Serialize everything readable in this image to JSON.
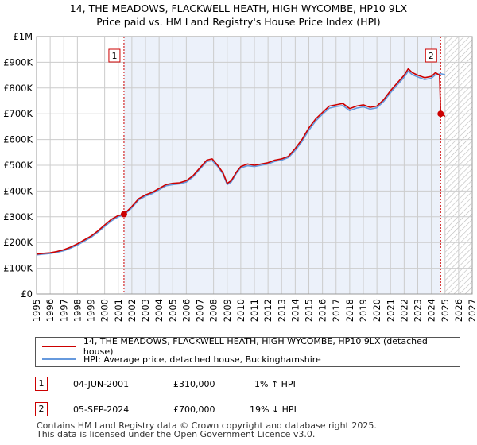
{
  "title_line1": "14, THE MEADOWS, FLACKWELL HEATH, HIGH WYCOMBE, HP10 9LX",
  "title_line2": "Price paid vs. HM Land Registry's House Price Index (HPI)",
  "colors": {
    "property": "#cc0000",
    "hpi": "#6699dd",
    "marker": "#cc0000",
    "shade": "#dde6f5",
    "hatch": "#bbbbbb"
  },
  "chart_data": {
    "type": "line",
    "title": "14, THE MEADOWS, FLACKWELL HEATH, HIGH WYCOMBE, HP10 9LX — Price paid vs. HM Land Registry's House Price Index (HPI)",
    "xlabel": "",
    "ylabel": "",
    "xlim": [
      1995,
      2027
    ],
    "ylim": [
      0,
      1000000
    ],
    "y_ticks": [
      0,
      100000,
      200000,
      300000,
      400000,
      500000,
      600000,
      700000,
      800000,
      900000,
      1000000
    ],
    "y_tick_labels": [
      "£0",
      "£100K",
      "£200K",
      "£300K",
      "£400K",
      "£500K",
      "£600K",
      "£700K",
      "£800K",
      "£900K",
      "£1M"
    ],
    "x_ticks": [
      1995,
      1996,
      1997,
      1998,
      1999,
      2000,
      2001,
      2002,
      2003,
      2004,
      2005,
      2006,
      2007,
      2008,
      2009,
      2010,
      2011,
      2012,
      2013,
      2014,
      2015,
      2016,
      2017,
      2018,
      2019,
      2020,
      2021,
      2022,
      2023,
      2024,
      2025,
      2026,
      2027
    ],
    "x_tick_labels": [
      "1995",
      "1996",
      "1997",
      "1998",
      "1999",
      "2000",
      "2001",
      "2002",
      "2003",
      "2004",
      "2005",
      "2006",
      "2007",
      "2008",
      "2009",
      "2010",
      "2011",
      "2012",
      "2013",
      "2014",
      "2015",
      "2016",
      "2017",
      "2018",
      "2019",
      "2020",
      "2021",
      "2022",
      "2023",
      "2024",
      "2025",
      "2026",
      "2027"
    ],
    "shaded_period": [
      2001.42,
      2024.68
    ],
    "forecast_hatch_from": 2025.0,
    "series": [
      {
        "name": "14, THE MEADOWS, FLACKWELL HEATH, HIGH WYCOMBE, HP10 9LX (detached house)",
        "x": [
          1995.0,
          1995.5,
          1996.0,
          1996.5,
          1997.0,
          1997.5,
          1998.0,
          1998.5,
          1999.0,
          1999.5,
          2000.0,
          2000.5,
          2001.0,
          2001.42,
          2002.0,
          2002.5,
          2003.0,
          2003.5,
          2004.0,
          2004.5,
          2005.0,
          2005.5,
          2006.0,
          2006.5,
          2007.0,
          2007.5,
          2007.9,
          2008.3,
          2008.7,
          2009.0,
          2009.3,
          2009.7,
          2010.0,
          2010.5,
          2011.0,
          2011.5,
          2012.0,
          2012.5,
          2013.0,
          2013.5,
          2014.0,
          2014.5,
          2015.0,
          2015.5,
          2016.0,
          2016.5,
          2017.0,
          2017.5,
          2018.0,
          2018.5,
          2019.0,
          2019.5,
          2020.0,
          2020.5,
          2021.0,
          2021.5,
          2022.0,
          2022.3,
          2022.6,
          2023.0,
          2023.5,
          2024.0,
          2024.3,
          2024.6,
          2024.68,
          2025.0
        ],
        "y": [
          155000,
          158000,
          160000,
          165000,
          172000,
          182000,
          195000,
          210000,
          225000,
          245000,
          268000,
          290000,
          305000,
          310000,
          340000,
          370000,
          385000,
          395000,
          410000,
          425000,
          430000,
          432000,
          440000,
          460000,
          490000,
          520000,
          525000,
          500000,
          470000,
          430000,
          440000,
          475000,
          495000,
          505000,
          500000,
          505000,
          510000,
          520000,
          525000,
          535000,
          565000,
          600000,
          645000,
          680000,
          705000,
          730000,
          735000,
          740000,
          720000,
          730000,
          735000,
          725000,
          730000,
          755000,
          790000,
          820000,
          850000,
          875000,
          860000,
          850000,
          840000,
          845000,
          860000,
          850000,
          700000,
          690000
        ]
      },
      {
        "name": "HPI: Average price, detached house, Buckinghamshire",
        "x": [
          1995.0,
          1995.5,
          1996.0,
          1996.5,
          1997.0,
          1997.5,
          1998.0,
          1998.5,
          1999.0,
          1999.5,
          2000.0,
          2000.5,
          2001.0,
          2001.42,
          2002.0,
          2002.5,
          2003.0,
          2003.5,
          2004.0,
          2004.5,
          2005.0,
          2005.5,
          2006.0,
          2006.5,
          2007.0,
          2007.5,
          2007.9,
          2008.3,
          2008.7,
          2009.0,
          2009.3,
          2009.7,
          2010.0,
          2010.5,
          2011.0,
          2011.5,
          2012.0,
          2012.5,
          2013.0,
          2013.5,
          2014.0,
          2014.5,
          2015.0,
          2015.5,
          2016.0,
          2016.5,
          2017.0,
          2017.5,
          2018.0,
          2018.5,
          2019.0,
          2019.5,
          2020.0,
          2020.5,
          2021.0,
          2021.5,
          2022.0,
          2022.3,
          2022.6,
          2023.0,
          2023.5,
          2024.0,
          2024.3,
          2024.6,
          2024.68,
          2025.0
        ],
        "y": [
          152000,
          155000,
          157000,
          162000,
          168000,
          178000,
          190000,
          205000,
          220000,
          240000,
          262000,
          284000,
          300000,
          307000,
          335000,
          365000,
          380000,
          390000,
          405000,
          420000,
          425000,
          428000,
          435000,
          455000,
          485000,
          515000,
          518000,
          495000,
          465000,
          425000,
          435000,
          470000,
          490000,
          498000,
          495000,
          500000,
          505000,
          515000,
          520000,
          530000,
          558000,
          592000,
          636000,
          672000,
          698000,
          722000,
          728000,
          732000,
          712000,
          722000,
          727000,
          718000,
          723000,
          748000,
          782000,
          812000,
          842000,
          866000,
          852000,
          843000,
          833000,
          838000,
          852000,
          855000,
          856000,
          852000
        ]
      }
    ],
    "sales": [
      {
        "num": "1",
        "x": 2001.42,
        "y": 310000
      },
      {
        "num": "2",
        "x": 2024.68,
        "y": 700000
      }
    ]
  },
  "legend": {
    "property_label": "14, THE MEADOWS, FLACKWELL HEATH, HIGH WYCOMBE, HP10 9LX (detached house)",
    "hpi_label": "HPI: Average price, detached house, Buckinghamshire"
  },
  "sales_table": [
    {
      "num": "1",
      "date": "04-JUN-2001",
      "price": "£310,000",
      "hpi_change": "1% ↑ HPI"
    },
    {
      "num": "2",
      "date": "05-SEP-2024",
      "price": "£700,000",
      "hpi_change": "19% ↓ HPI"
    }
  ],
  "footer_line1": "Contains HM Land Registry data © Crown copyright and database right 2025.",
  "footer_line2": "This data is licensed under the Open Government Licence v3.0."
}
